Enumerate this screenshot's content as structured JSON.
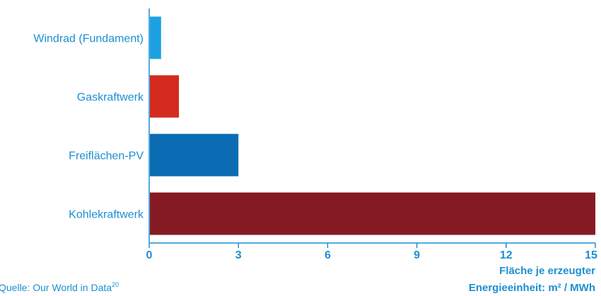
{
  "chart_data": {
    "type": "bar",
    "orientation": "horizontal",
    "categories": [
      "Windrad (Fundament)",
      "Gaskraftwerk",
      "Freiflächen-PV",
      "Kohlekraftwerk"
    ],
    "values": [
      0.4,
      1.0,
      3.0,
      15.0
    ],
    "colors": [
      "#1ba1e2",
      "#d32b1e",
      "#0b6cb3",
      "#861a22"
    ],
    "xlabel_line1": "Fläche je erzeugter",
    "xlabel_line2": "Energieeinheit: m² / MWh",
    "xticks": [
      0,
      3,
      6,
      9,
      12,
      15
    ],
    "xlim": [
      0,
      15
    ],
    "grid": false,
    "legend": "none"
  },
  "source": {
    "text": "Quelle: Our World in Data",
    "footnote": "20"
  },
  "colors": {
    "text": "#1d8fd0",
    "axis": "#1d8fd0"
  }
}
